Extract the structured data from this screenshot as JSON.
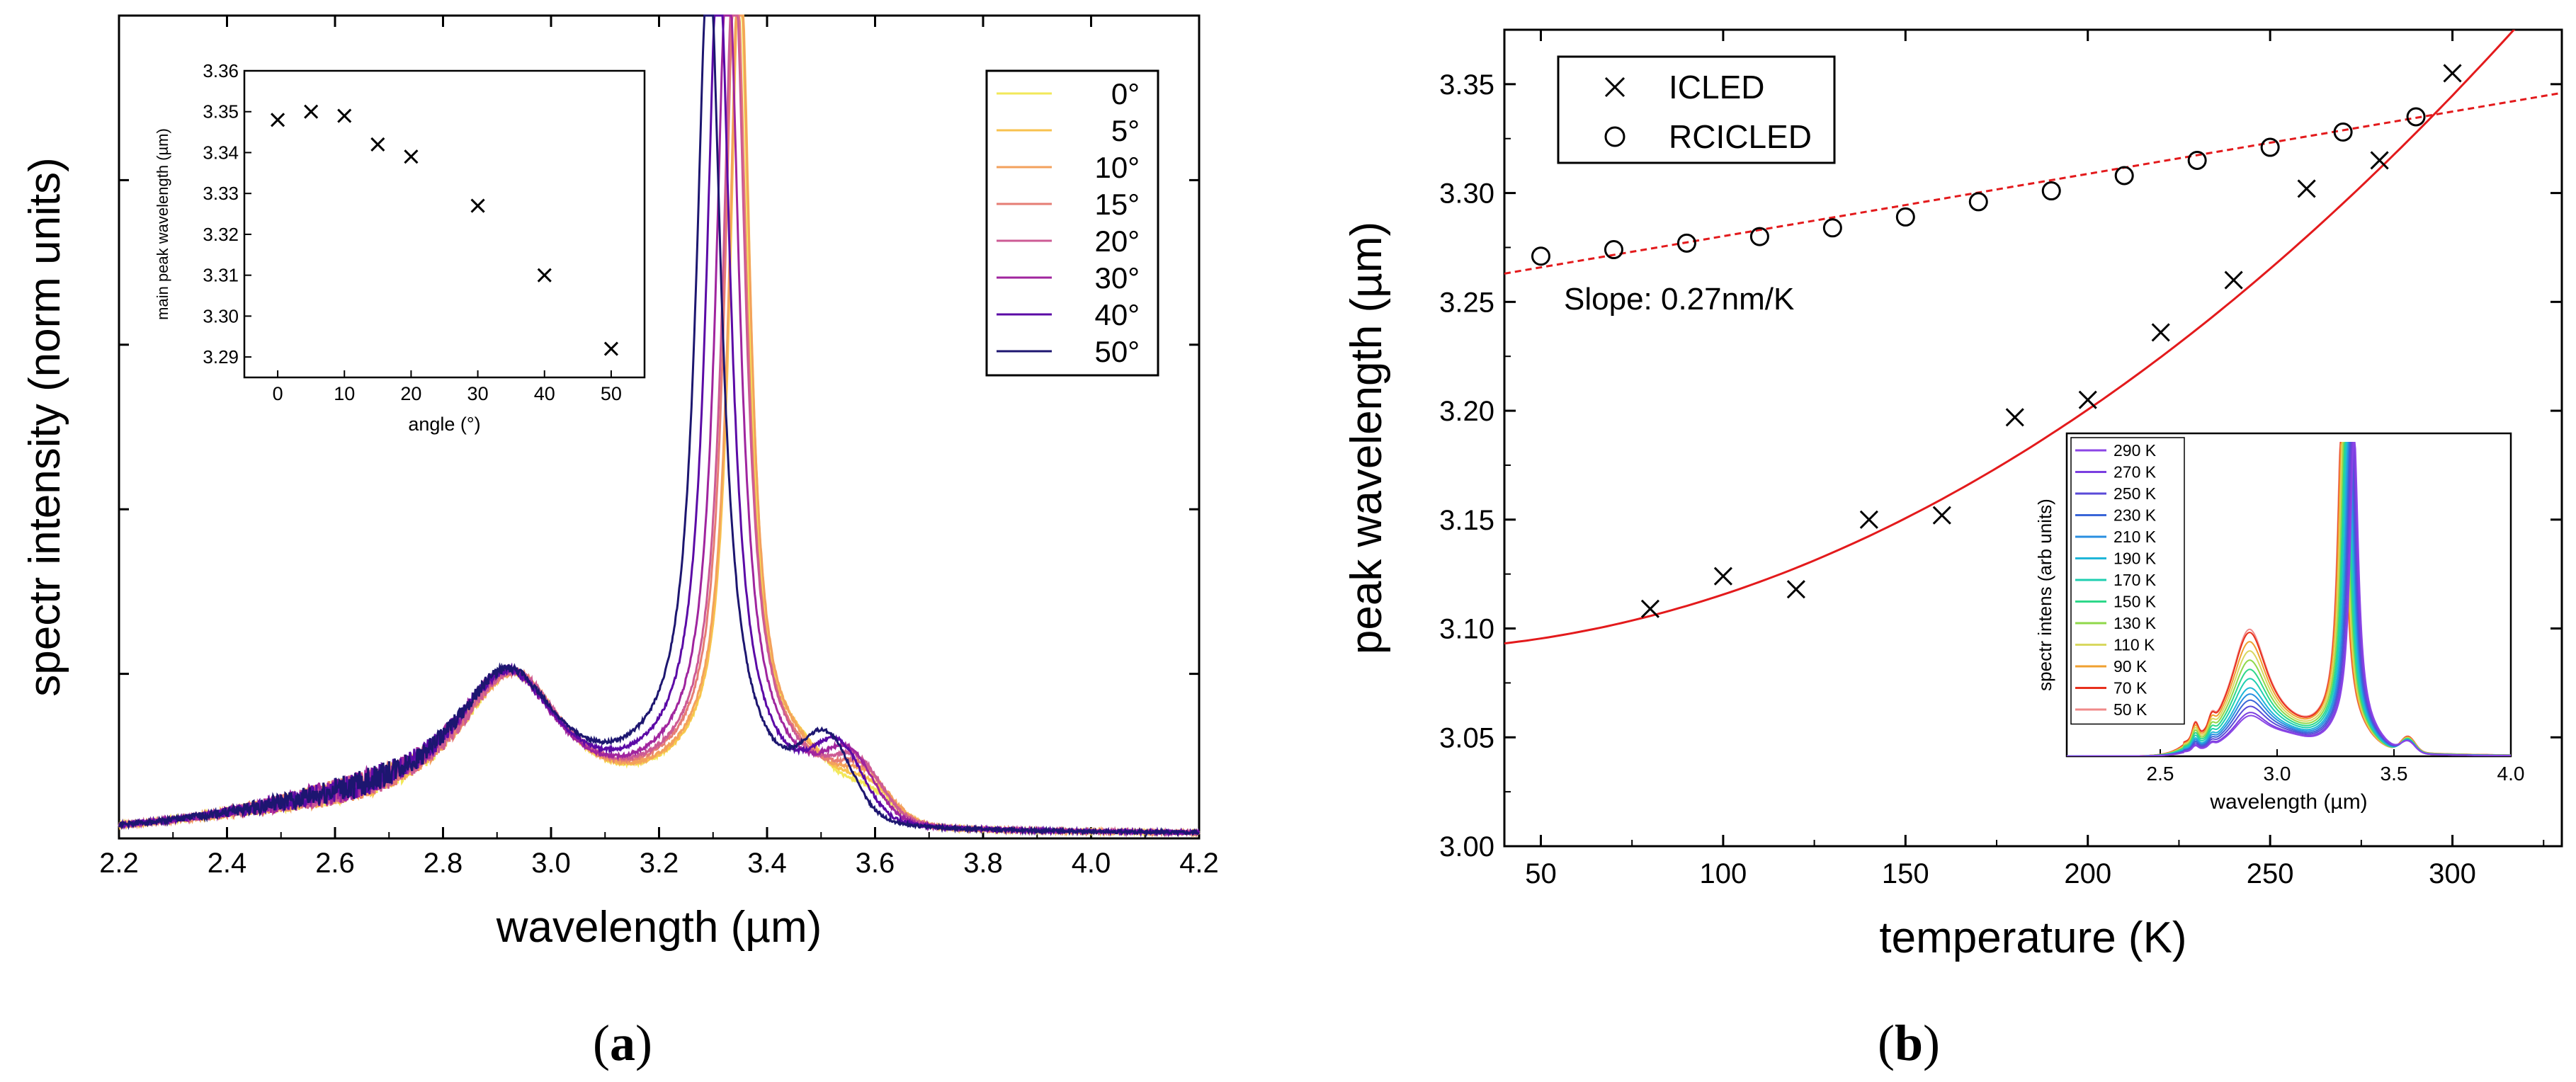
{
  "panel_labels": {
    "a": "a",
    "b": "b"
  },
  "chart_data": [
    {
      "id": "a-main",
      "type": "line",
      "xlabel": "wavelength (µm)",
      "ylabel": "spectr intensity (norm units)",
      "xlim": [
        2.2,
        4.2
      ],
      "ylim": [
        0,
        1
      ],
      "x_ticks": [
        "2.2",
        "2.4",
        "2.6",
        "2.8",
        "3.0",
        "3.2",
        "3.4",
        "3.6",
        "3.8",
        "4.0",
        "4.2"
      ],
      "grid": false,
      "legend_position": "top-right",
      "series": [
        {
          "name": "0°",
          "color": "#f2e85a",
          "peak_um": 3.348,
          "shoulder_um": 2.93
        },
        {
          "name": "5°",
          "color": "#f8c24e",
          "peak_um": 3.35,
          "shoulder_um": 2.93
        },
        {
          "name": "10°",
          "color": "#f3a15c",
          "peak_um": 3.349,
          "shoulder_um": 2.93
        },
        {
          "name": "15°",
          "color": "#e67d74",
          "peak_um": 3.342,
          "shoulder_um": 2.93
        },
        {
          "name": "20°",
          "color": "#cd5b94",
          "peak_um": 3.339,
          "shoulder_um": 2.93
        },
        {
          "name": "30°",
          "color": "#a0259e",
          "peak_um": 3.327,
          "shoulder_um": 2.92
        },
        {
          "name": "40°",
          "color": "#5b0aa6",
          "peak_um": 3.31,
          "shoulder_um": 2.92
        },
        {
          "name": "50°",
          "color": "#1d1670",
          "peak_um": 3.292,
          "shoulder_um": 2.92
        }
      ]
    },
    {
      "id": "a-inset",
      "type": "scatter",
      "xlabel": "angle (°)",
      "ylabel": "main peak wavelength (µm)",
      "xlim": [
        -5,
        55
      ],
      "ylim": [
        3.285,
        3.36
      ],
      "x_ticks": [
        0,
        10,
        20,
        30,
        40,
        50
      ],
      "y_ticks": [
        "3.29",
        "3.30",
        "3.31",
        "3.32",
        "3.33",
        "3.34",
        "3.35",
        "3.36"
      ],
      "marker": "x",
      "x": [
        0,
        5,
        10,
        15,
        20,
        30,
        40,
        50
      ],
      "y": [
        3.348,
        3.35,
        3.349,
        3.342,
        3.339,
        3.327,
        3.31,
        3.292
      ]
    },
    {
      "id": "b-main",
      "type": "scatter",
      "xlabel": "temperature (K)",
      "ylabel": "peak wavelength (µm)",
      "xlim": [
        40,
        330
      ],
      "ylim": [
        3.0,
        3.375
      ],
      "x_ticks": [
        50,
        100,
        150,
        200,
        250,
        300
      ],
      "y_ticks": [
        "3.00",
        "3.05",
        "3.10",
        "3.15",
        "3.20",
        "3.25",
        "3.30",
        "3.35"
      ],
      "legend_position": "top-left",
      "annotation": "Slope: 0.27nm/K",
      "series": [
        {
          "name": "ICLED",
          "marker": "x",
          "x": [
            80,
            100,
            120,
            140,
            160,
            180,
            200,
            220,
            240,
            260,
            280,
            300
          ],
          "y": [
            3.109,
            3.124,
            3.118,
            3.15,
            3.152,
            3.197,
            3.205,
            3.236,
            3.26,
            3.302,
            3.315,
            3.355
          ],
          "fit": {
            "style": "solid",
            "color": "#e31a1c",
            "x": [
              40,
              100,
              150,
              200,
              250,
              300,
              312
            ],
            "y": [
              3.09,
              3.12,
              3.153,
              3.2,
              3.26,
              3.338,
              3.375
            ]
          }
        },
        {
          "name": "RCICLED",
          "marker": "o",
          "x": [
            50,
            70,
            90,
            110,
            130,
            150,
            170,
            190,
            210,
            230,
            250,
            270,
            290
          ],
          "y": [
            3.271,
            3.274,
            3.277,
            3.28,
            3.284,
            3.289,
            3.296,
            3.301,
            3.308,
            3.315,
            3.321,
            3.328,
            3.335
          ],
          "fit": {
            "style": "dashed",
            "color": "#e31a1c",
            "x": [
              40,
              330
            ],
            "y": [
              3.263,
              3.346
            ]
          }
        }
      ]
    },
    {
      "id": "b-inset",
      "type": "line",
      "xlabel": "wavelength (µm)",
      "ylabel": "spectr intens (arb units)",
      "xlim": [
        2.1,
        4.0
      ],
      "x_ticks": [
        "2.5",
        "3.0",
        "3.5",
        "4.0"
      ],
      "legend_position": "top-left",
      "series": [
        {
          "name": "290 K",
          "color": "#8b45e6",
          "peak_um": 3.33,
          "amp": 0.95,
          "shoulder": 0.12
        },
        {
          "name": "270 K",
          "color": "#7b3fe0",
          "peak_um": 3.325,
          "amp": 0.95,
          "shoulder": 0.13
        },
        {
          "name": "250 K",
          "color": "#5a4ad8",
          "peak_um": 3.32,
          "amp": 0.96,
          "shoulder": 0.15
        },
        {
          "name": "230 K",
          "color": "#3a66d8",
          "peak_um": 3.315,
          "amp": 0.96,
          "shoulder": 0.17
        },
        {
          "name": "210 K",
          "color": "#2a8fe0",
          "peak_um": 3.31,
          "amp": 0.97,
          "shoulder": 0.19
        },
        {
          "name": "190 K",
          "color": "#1fb6d8",
          "peak_um": 3.305,
          "amp": 0.97,
          "shoulder": 0.21
        },
        {
          "name": "170 K",
          "color": "#1fcfb0",
          "peak_um": 3.3,
          "amp": 0.98,
          "shoulder": 0.24
        },
        {
          "name": "150 K",
          "color": "#2ed88a",
          "peak_um": 3.295,
          "amp": 0.98,
          "shoulder": 0.27
        },
        {
          "name": "130 K",
          "color": "#8fd84a",
          "peak_um": 3.29,
          "amp": 0.99,
          "shoulder": 0.3
        },
        {
          "name": "110 K",
          "color": "#d8d860",
          "peak_um": 3.285,
          "amp": 0.99,
          "shoulder": 0.33
        },
        {
          "name": "90 K",
          "color": "#f0a030",
          "peak_um": 3.28,
          "amp": 1.0,
          "shoulder": 0.36
        },
        {
          "name": "70 K",
          "color": "#e8301c",
          "peak_um": 3.278,
          "amp": 1.0,
          "shoulder": 0.39
        },
        {
          "name": "50 K",
          "color": "#f08a8a",
          "peak_um": 3.276,
          "amp": 1.0,
          "shoulder": 0.4
        }
      ]
    }
  ]
}
